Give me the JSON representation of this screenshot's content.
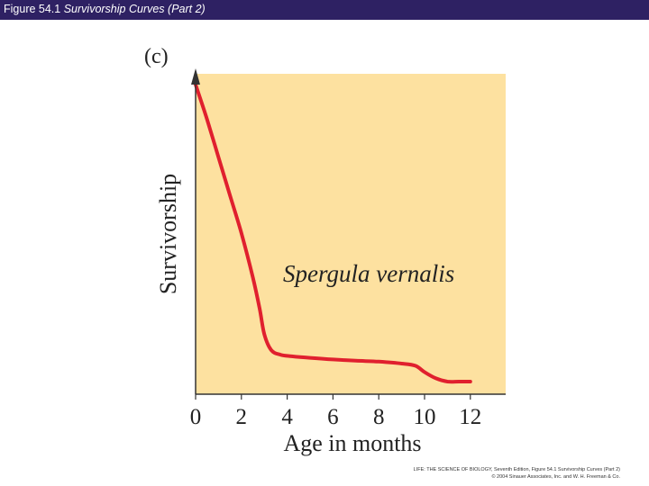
{
  "header": {
    "figure_label": "Figure 54.1",
    "title": "Survivorship Curves (Part 2)"
  },
  "colors": {
    "header_bg": "#2e2163",
    "plot_bg": "#fde1a0",
    "curve": "#e0202e",
    "axis": "#333333"
  },
  "chart_data": {
    "type": "line",
    "panel_label": "(c)",
    "annotation": "Spergula vernalis",
    "xlabel": "Age in months",
    "ylabel": "Survivorship",
    "xlim": [
      0,
      13.5
    ],
    "ylim": [
      0,
      1
    ],
    "xticks": [
      0,
      2,
      4,
      6,
      8,
      10,
      12
    ],
    "series": [
      {
        "x": [
          0,
          0.5,
          1,
          1.5,
          2,
          2.5,
          2.8,
          3.0,
          3.3,
          3.7,
          4.2,
          5,
          6,
          7,
          8,
          9,
          9.6,
          10,
          10.5,
          11,
          11.5,
          12
        ],
        "values": [
          0.98,
          0.87,
          0.75,
          0.63,
          0.51,
          0.37,
          0.27,
          0.19,
          0.14,
          0.125,
          0.12,
          0.115,
          0.11,
          0.106,
          0.103,
          0.097,
          0.09,
          0.07,
          0.05,
          0.04,
          0.04,
          0.04
        ]
      }
    ]
  },
  "footer": {
    "credit_line1": "LIFE: THE SCIENCE OF BIOLOGY, Seventh Edition, Figure 54.1 Survivorship Curves (Part 2)",
    "credit_line2": "© 2004 Sinauer Associates, Inc. and W. H. Freeman & Co."
  }
}
